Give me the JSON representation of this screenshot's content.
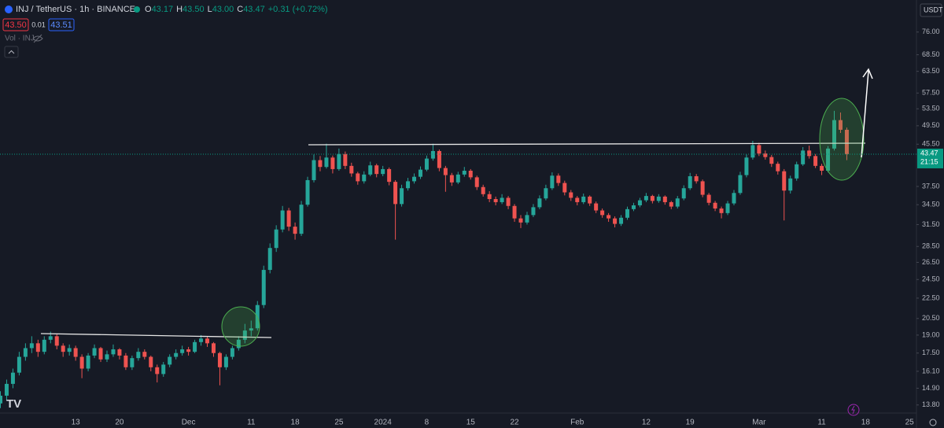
{
  "header": {
    "symbol": "INJ / TetherUS · 1h · BINANCE",
    "ohlc": [
      {
        "key": "O",
        "value": "43.17"
      },
      {
        "key": "H",
        "value": "43.50"
      },
      {
        "key": "L",
        "value": "43.00"
      },
      {
        "key": "C",
        "value": "43.47"
      }
    ],
    "change": "+0.31 (+0.72%)",
    "sell": "43.50",
    "spread": "0.01",
    "buy": "43.51",
    "volume": "Vol · INJ"
  },
  "currency": "USDT",
  "price_label": {
    "price": "43.47",
    "countdown": "21:15"
  },
  "chart_data": {
    "type": "candlestick",
    "log_scale": true,
    "grid": false,
    "ylim": [
      13.3,
      88
    ],
    "yticks": [
      {
        "value": 13.8,
        "label": "13.80"
      },
      {
        "value": 14.9,
        "label": "14.90"
      },
      {
        "value": 16.1,
        "label": "16.10"
      },
      {
        "value": 17.5,
        "label": "17.50"
      },
      {
        "value": 19,
        "label": "19.00"
      },
      {
        "value": 20.5,
        "label": "20.50"
      },
      {
        "value": 22.5,
        "label": "22.50"
      },
      {
        "value": 24.5,
        "label": "24.50"
      },
      {
        "value": 26.5,
        "label": "26.50"
      },
      {
        "value": 28.5,
        "label": "28.50"
      },
      {
        "value": 31.5,
        "label": "31.50"
      },
      {
        "value": 34.5,
        "label": "34.50"
      },
      {
        "value": 37.5,
        "label": "37.50"
      },
      {
        "value": 45.5,
        "label": "45.50"
      },
      {
        "value": 49.5,
        "label": "49.50"
      },
      {
        "value": 53.5,
        "label": "53.50"
      },
      {
        "value": 57.5,
        "label": "57.50"
      },
      {
        "value": 63.5,
        "label": "63.50"
      },
      {
        "value": 68.5,
        "label": "68.50"
      },
      {
        "value": 76,
        "label": "76.00"
      }
    ],
    "categories": [
      null,
      null,
      null,
      null,
      null,
      null,
      null,
      null,
      null,
      null,
      null,
      null,
      "13",
      null,
      null,
      null,
      null,
      null,
      null,
      "20",
      null,
      null,
      null,
      null,
      null,
      null,
      null,
      null,
      null,
      null,
      "Dec",
      null,
      null,
      null,
      null,
      null,
      null,
      null,
      null,
      null,
      "11",
      null,
      null,
      null,
      null,
      null,
      null,
      "18",
      null,
      null,
      null,
      null,
      null,
      null,
      "25",
      null,
      null,
      null,
      null,
      null,
      null,
      "2024",
      null,
      null,
      null,
      null,
      null,
      null,
      "8",
      null,
      null,
      null,
      null,
      null,
      null,
      "15",
      null,
      null,
      null,
      null,
      null,
      null,
      "22",
      null,
      null,
      null,
      null,
      null,
      null,
      null,
      null,
      null,
      "Feb",
      null,
      null,
      null,
      null,
      null,
      null,
      null,
      null,
      null,
      null,
      "12",
      null,
      null,
      null,
      null,
      null,
      null,
      "19",
      null,
      null,
      null,
      null,
      null,
      null,
      null,
      null,
      null,
      null,
      "Mar",
      null,
      null,
      null,
      null,
      null,
      null,
      null,
      null,
      null,
      "11",
      null,
      null,
      null,
      null,
      null,
      null,
      "18",
      null,
      null,
      null,
      null,
      null,
      null,
      "25",
      null
    ],
    "series": [
      {
        "up_color": "#26a69a",
        "down_color": "#ef5350",
        "values": [
          [
            13.9,
            14.7,
            13.6,
            14.4
          ],
          [
            14.4,
            15.5,
            14.1,
            15.2
          ],
          [
            15.2,
            16.3,
            14.9,
            16.0
          ],
          [
            16.0,
            17.6,
            15.8,
            17.2
          ],
          [
            17.2,
            18.3,
            16.9,
            17.9
          ],
          [
            17.9,
            18.9,
            17.5,
            18.3
          ],
          [
            18.3,
            18.6,
            17.2,
            17.6
          ],
          [
            17.6,
            18.9,
            17.4,
            18.6
          ],
          [
            18.6,
            19.3,
            18.3,
            18.9
          ],
          [
            18.9,
            19.1,
            17.8,
            18.1
          ],
          [
            18.1,
            18.3,
            17.2,
            17.6
          ],
          [
            17.6,
            18.2,
            17.3,
            17.9
          ],
          [
            17.9,
            18.1,
            16.9,
            17.2
          ],
          [
            17.2,
            17.4,
            15.6,
            16.3
          ],
          [
            16.3,
            17.5,
            16.1,
            17.3
          ],
          [
            17.3,
            18.2,
            17.1,
            17.9
          ],
          [
            17.9,
            18.0,
            16.8,
            17.0
          ],
          [
            17.0,
            17.7,
            16.8,
            17.4
          ],
          [
            17.4,
            18.2,
            17.2,
            17.8
          ],
          [
            17.8,
            17.9,
            17.0,
            17.3
          ],
          [
            17.3,
            17.5,
            16.2,
            16.4
          ],
          [
            16.4,
            17.3,
            16.2,
            17.1
          ],
          [
            17.1,
            17.9,
            16.9,
            17.6
          ],
          [
            17.6,
            17.8,
            17.0,
            17.2
          ],
          [
            17.2,
            17.3,
            16.1,
            16.4
          ],
          [
            16.4,
            16.6,
            15.3,
            15.9
          ],
          [
            15.9,
            16.8,
            15.7,
            16.6
          ],
          [
            16.6,
            17.4,
            16.4,
            17.2
          ],
          [
            17.2,
            17.8,
            17.0,
            17.5
          ],
          [
            17.5,
            18.1,
            17.3,
            17.8
          ],
          [
            17.8,
            18.0,
            17.3,
            17.6
          ],
          [
            17.6,
            18.6,
            17.5,
            18.4
          ],
          [
            18.4,
            19.0,
            18.1,
            18.7
          ],
          [
            18.7,
            18.9,
            18.0,
            18.3
          ],
          [
            18.3,
            18.4,
            17.2,
            17.5
          ],
          [
            17.5,
            17.6,
            15.1,
            16.4
          ],
          [
            16.4,
            17.4,
            16.2,
            17.2
          ],
          [
            17.2,
            18.1,
            17.0,
            17.9
          ],
          [
            17.9,
            18.9,
            17.7,
            18.6
          ],
          [
            18.6,
            20.0,
            18.3,
            19.4
          ],
          [
            19.4,
            20.3,
            18.9,
            19.6
          ],
          [
            19.6,
            22.2,
            19.4,
            21.8
          ],
          [
            21.8,
            26.1,
            21.5,
            25.6
          ],
          [
            25.6,
            28.9,
            25.2,
            28.3
          ],
          [
            28.3,
            31.4,
            27.8,
            30.8
          ],
          [
            30.8,
            34.3,
            30.4,
            33.6
          ],
          [
            33.6,
            34.0,
            30.6,
            31.2
          ],
          [
            31.2,
            31.8,
            29.4,
            30.2
          ],
          [
            30.2,
            35.1,
            29.9,
            34.5
          ],
          [
            34.5,
            39.2,
            34.2,
            38.6
          ],
          [
            38.6,
            43.4,
            38.2,
            42.3
          ],
          [
            42.3,
            43.1,
            40.2,
            41.0
          ],
          [
            41.0,
            45.6,
            40.7,
            42.8
          ],
          [
            42.8,
            43.2,
            39.8,
            40.6
          ],
          [
            40.6,
            44.6,
            40.3,
            43.5
          ],
          [
            43.5,
            44.0,
            40.6,
            41.2
          ],
          [
            41.2,
            41.8,
            39.2,
            39.8
          ],
          [
            39.8,
            40.1,
            37.8,
            38.4
          ],
          [
            38.4,
            40.2,
            38.0,
            39.6
          ],
          [
            39.6,
            42.0,
            39.3,
            41.3
          ],
          [
            41.3,
            41.6,
            39.1,
            39.7
          ],
          [
            39.7,
            41.2,
            39.3,
            40.6
          ],
          [
            40.6,
            40.9,
            37.7,
            38.3
          ],
          [
            38.3,
            38.6,
            29.4,
            34.6
          ],
          [
            34.6,
            37.8,
            34.2,
            37.2
          ],
          [
            37.2,
            39.0,
            36.8,
            38.4
          ],
          [
            38.4,
            39.8,
            38.0,
            39.2
          ],
          [
            39.2,
            41.1,
            38.8,
            40.5
          ],
          [
            40.5,
            43.2,
            40.2,
            42.6
          ],
          [
            42.6,
            45.6,
            42.2,
            44.1
          ],
          [
            44.1,
            44.4,
            40.2,
            40.8
          ],
          [
            40.8,
            41.2,
            36.6,
            39.5
          ],
          [
            39.5,
            39.9,
            37.6,
            38.2
          ],
          [
            38.2,
            40.1,
            37.9,
            39.6
          ],
          [
            39.6,
            41.0,
            39.2,
            40.3
          ],
          [
            40.3,
            40.6,
            38.7,
            39.1
          ],
          [
            39.1,
            39.4,
            36.9,
            37.4
          ],
          [
            37.4,
            37.8,
            35.8,
            36.2
          ],
          [
            36.2,
            36.7,
            34.9,
            35.4
          ],
          [
            35.4,
            35.8,
            34.4,
            34.9
          ],
          [
            34.9,
            36.2,
            34.6,
            35.6
          ],
          [
            35.6,
            35.9,
            33.8,
            34.3
          ],
          [
            34.3,
            34.6,
            31.9,
            32.4
          ],
          [
            32.4,
            32.9,
            31.0,
            31.8
          ],
          [
            31.8,
            33.4,
            31.5,
            32.9
          ],
          [
            32.9,
            34.6,
            32.6,
            34.1
          ],
          [
            34.1,
            36.0,
            33.8,
            35.5
          ],
          [
            35.5,
            37.8,
            35.2,
            37.2
          ],
          [
            37.2,
            40.0,
            36.9,
            39.4
          ],
          [
            39.4,
            39.8,
            37.6,
            38.1
          ],
          [
            38.1,
            38.5,
            36.0,
            36.5
          ],
          [
            36.5,
            36.9,
            35.1,
            35.6
          ],
          [
            35.6,
            35.9,
            34.4,
            34.9
          ],
          [
            34.9,
            36.3,
            34.6,
            35.8
          ],
          [
            35.8,
            36.0,
            34.3,
            34.7
          ],
          [
            34.7,
            35.0,
            33.2,
            33.6
          ],
          [
            33.6,
            33.9,
            32.5,
            32.9
          ],
          [
            32.9,
            33.2,
            31.9,
            32.4
          ],
          [
            32.4,
            32.7,
            31.1,
            31.6
          ],
          [
            31.6,
            32.9,
            31.3,
            32.5
          ],
          [
            32.5,
            34.2,
            32.2,
            33.8
          ],
          [
            33.8,
            34.8,
            33.5,
            34.4
          ],
          [
            34.4,
            35.6,
            34.1,
            35.2
          ],
          [
            35.2,
            36.4,
            34.9,
            35.9
          ],
          [
            35.9,
            36.1,
            34.7,
            35.1
          ],
          [
            35.1,
            36.2,
            34.8,
            35.8
          ],
          [
            35.8,
            36.0,
            34.5,
            34.9
          ],
          [
            34.9,
            35.1,
            33.8,
            34.2
          ],
          [
            34.2,
            35.9,
            33.9,
            35.5
          ],
          [
            35.5,
            37.7,
            35.2,
            37.2
          ],
          [
            37.2,
            39.9,
            36.9,
            39.3
          ],
          [
            39.3,
            39.7,
            38.0,
            38.4
          ],
          [
            38.4,
            38.7,
            35.7,
            36.1
          ],
          [
            36.1,
            36.4,
            34.4,
            34.8
          ],
          [
            34.8,
            35.1,
            33.5,
            33.9
          ],
          [
            33.9,
            34.2,
            32.4,
            33.2
          ],
          [
            33.2,
            35.1,
            32.9,
            34.7
          ],
          [
            34.7,
            36.9,
            34.4,
            36.4
          ],
          [
            36.4,
            40.1,
            36.1,
            39.5
          ],
          [
            39.5,
            43.4,
            39.1,
            42.8
          ],
          [
            42.8,
            46.2,
            42.4,
            45.3
          ],
          [
            45.3,
            45.8,
            43.1,
            43.6
          ],
          [
            43.6,
            44.2,
            42.4,
            42.9
          ],
          [
            42.9,
            43.3,
            41.0,
            41.6
          ],
          [
            41.6,
            42.0,
            39.6,
            40.2
          ],
          [
            40.2,
            40.6,
            32.1,
            36.8
          ],
          [
            36.8,
            39.4,
            36.3,
            38.9
          ],
          [
            38.9,
            42.0,
            38.5,
            41.5
          ],
          [
            41.5,
            44.9,
            41.2,
            44.2
          ],
          [
            44.2,
            45.2,
            42.6,
            43.1
          ],
          [
            43.1,
            43.5,
            40.8,
            41.2
          ],
          [
            41.2,
            41.6,
            39.5,
            40.3
          ],
          [
            40.3,
            45.1,
            40.0,
            44.6
          ],
          [
            44.6,
            53.0,
            44.2,
            50.8
          ],
          [
            50.8,
            52.6,
            47.9,
            48.6
          ],
          [
            48.6,
            49.1,
            42.3,
            43.47
          ],
          null,
          null,
          null,
          null,
          null,
          null,
          null,
          null,
          null,
          null,
          null
        ]
      }
    ]
  }
}
